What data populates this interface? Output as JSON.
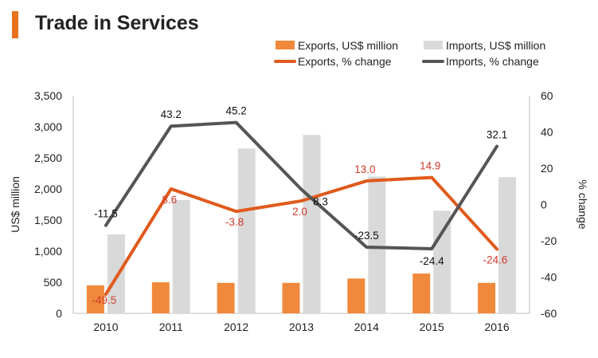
{
  "header": {
    "title": "Trade in Services"
  },
  "chart_data": {
    "type": "bar+line",
    "title": "Trade in Services",
    "categories": [
      "2010",
      "2011",
      "2012",
      "2013",
      "2014",
      "2015",
      "2016"
    ],
    "series": [
      {
        "name": "Exports, US$ million",
        "kind": "bar",
        "axis": "left",
        "color": "#F0893B",
        "values": [
          450,
          500,
          490,
          490,
          560,
          640,
          490
        ]
      },
      {
        "name": "Imports, US$ million",
        "kind": "bar",
        "axis": "left",
        "color": "#D9D9D9",
        "values": [
          1270,
          1820,
          2650,
          2870,
          2200,
          1650,
          2190
        ]
      },
      {
        "name": "Exports, % change",
        "kind": "line",
        "axis": "right",
        "color": "#E05A1C",
        "values": [
          -49.5,
          8.6,
          -3.8,
          2.0,
          13.0,
          14.9,
          -24.6
        ],
        "labels": [
          "-49.5",
          "8.6",
          "-3.8",
          "2.0",
          "13.0",
          "14.9",
          "-24.6"
        ]
      },
      {
        "name": "Imports, % change",
        "kind": "line",
        "axis": "right",
        "color": "#555555",
        "values": [
          -11.5,
          43.2,
          45.2,
          8.3,
          -23.5,
          -24.4,
          32.1
        ],
        "labels": [
          "-11.5",
          "43.2",
          "45.2",
          "8.3",
          "-23.5",
          "-24.4",
          "32.1"
        ]
      }
    ],
    "y_left": {
      "label": "US$ million",
      "range": [
        0,
        3500
      ],
      "ticks": [
        "0",
        "500",
        "1,000",
        "1,500",
        "2,000",
        "2,500",
        "3,000",
        "3,500"
      ],
      "tick_values": [
        0,
        500,
        1000,
        1500,
        2000,
        2500,
        3000,
        3500
      ]
    },
    "y_right": {
      "label": "% change",
      "range": [
        -60,
        60
      ],
      "ticks": [
        "-60",
        "-40",
        "-20",
        "0",
        "20",
        "40",
        "60"
      ],
      "tick_values": [
        -60,
        -40,
        -20,
        0,
        20,
        40,
        60
      ]
    },
    "legend_position": "top-right",
    "grid": false
  }
}
